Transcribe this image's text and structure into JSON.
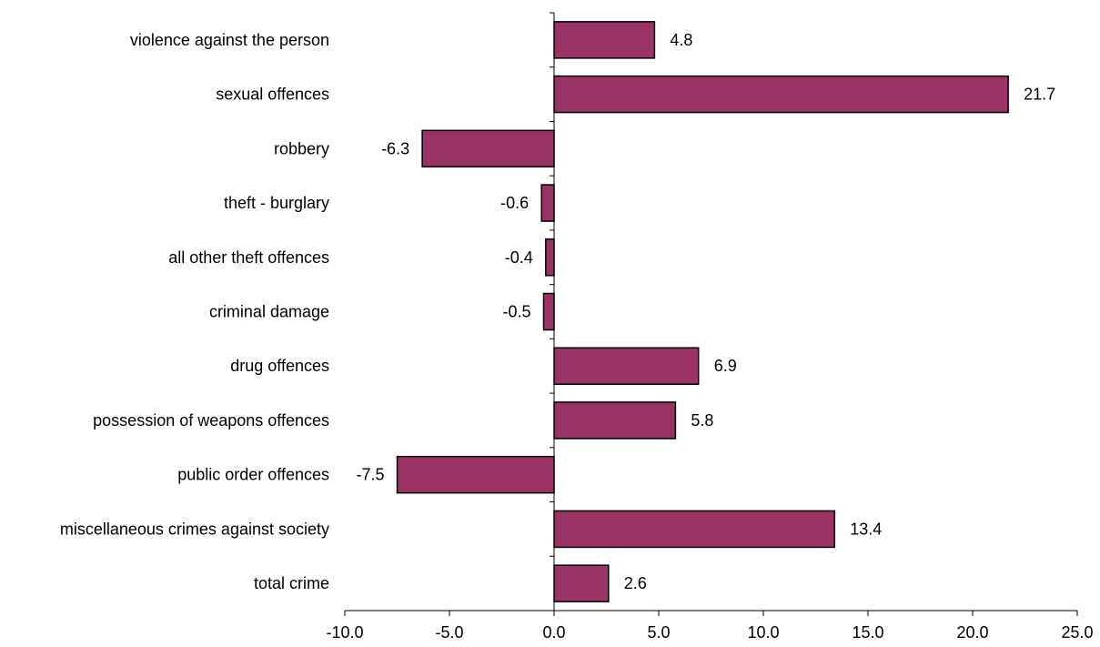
{
  "chart_data": {
    "type": "bar",
    "orientation": "horizontal",
    "categories": [
      "violence against the person",
      "sexual offences",
      "robbery",
      "theft - burglary",
      "all other theft offences",
      "criminal damage",
      "drug offences",
      "possession of weapons offences",
      "public order offences",
      "miscellaneous crimes against society",
      "total crime"
    ],
    "values": [
      4.8,
      21.7,
      -6.3,
      -0.6,
      -0.4,
      -0.5,
      6.9,
      5.8,
      -7.5,
      13.4,
      2.6
    ],
    "data_labels": [
      "4.8",
      "21.7",
      "-6.3",
      "-0.6",
      "-0.4",
      "-0.5",
      "6.9",
      "5.8",
      "-7.5",
      "13.4",
      "2.6"
    ],
    "title": "",
    "xlabel": "",
    "ylabel": "",
    "xlim": [
      -10.0,
      25.0
    ],
    "x_ticks": [
      -10.0,
      -5.0,
      0.0,
      5.0,
      10.0,
      15.0,
      20.0,
      25.0
    ],
    "x_tick_labels": [
      "-10.0",
      "-5.0",
      "0.0",
      "5.0",
      "10.0",
      "15.0",
      "20.0",
      "25.0"
    ],
    "grid": false,
    "legend": "none",
    "bar_color": "#993366",
    "bar_edge_color": "#000000"
  }
}
